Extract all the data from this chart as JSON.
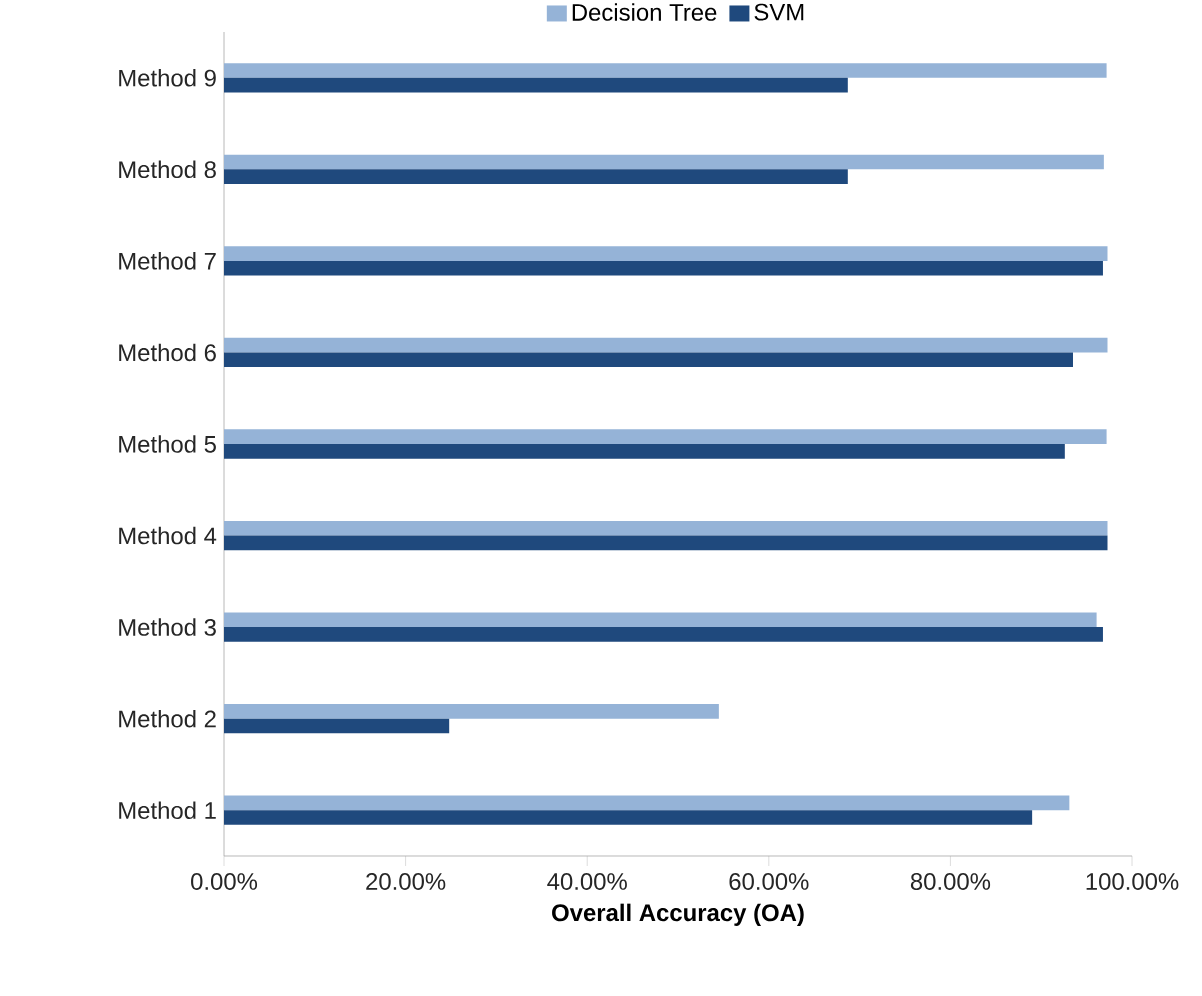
{
  "chart_data": {
    "type": "bar",
    "orientation": "horizontal",
    "xlabel": "Overall Accuracy (OA)",
    "categories": [
      "Method 9",
      "Method 8",
      "Method 7",
      "Method 6",
      "Method 5",
      "Method 4",
      "Method 3",
      "Method 2",
      "Method 1"
    ],
    "series": [
      {
        "name": "Decision Tree",
        "color": "#95b3d7",
        "values": [
          97.2,
          96.9,
          97.3,
          97.3,
          97.2,
          97.3,
          96.1,
          54.5,
          93.1
        ]
      },
      {
        "name": "SVM",
        "color": "#1f497d",
        "values": [
          68.7,
          68.7,
          96.8,
          93.5,
          92.6,
          97.3,
          96.8,
          24.8,
          89.0
        ]
      }
    ],
    "xlim": [
      0,
      100
    ],
    "xticks": [
      {
        "value": 0,
        "label": "0.00%"
      },
      {
        "value": 20,
        "label": "20.00%"
      },
      {
        "value": 40,
        "label": "40.00%"
      },
      {
        "value": 60,
        "label": "60.00%"
      },
      {
        "value": 80,
        "label": "80.00%"
      },
      {
        "value": 100,
        "label": "100.00%"
      }
    ],
    "legend": "top",
    "grid": false
  }
}
